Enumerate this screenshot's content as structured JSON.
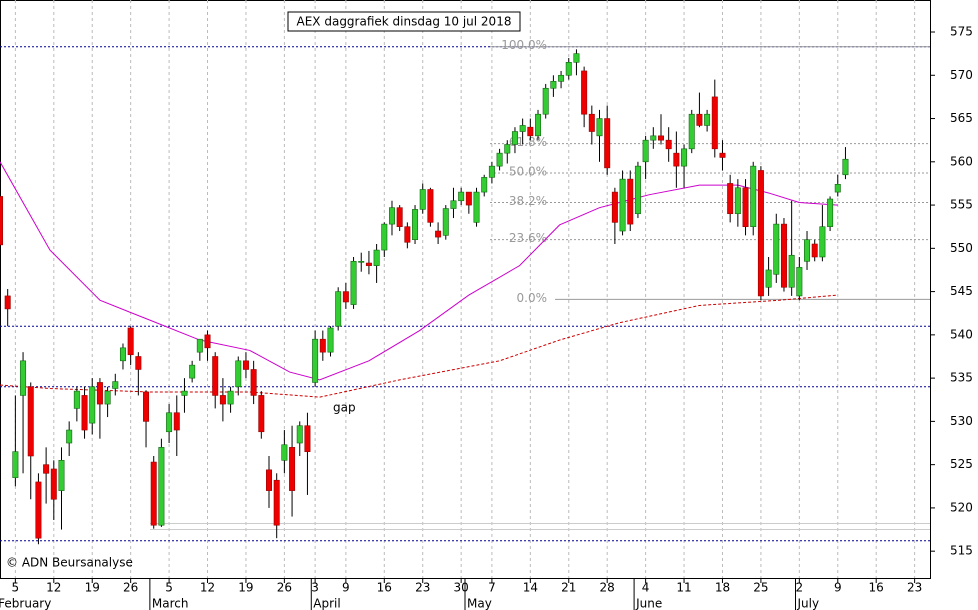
{
  "chart_data": {
    "type": "candlestick",
    "title": "AEX daggrafiek dinsdag 10 jul 2018",
    "annotation": "gap",
    "credit": "© ADN Beursanalyse",
    "up_color": "#33cc33",
    "down_color": "#ee0000",
    "xlim": [
      -2,
      119
    ],
    "ylim": [
      511.9,
      578.7
    ],
    "yticks": [
      515,
      520,
      525,
      530,
      535,
      540,
      545,
      550,
      555,
      560,
      565,
      570,
      575
    ],
    "xticks": [
      {
        "value": 0,
        "label": "5"
      },
      {
        "value": 5,
        "label": "12"
      },
      {
        "value": 10,
        "label": "19"
      },
      {
        "value": 15,
        "label": "26"
      },
      {
        "value": 20,
        "label": "5"
      },
      {
        "value": 25,
        "label": "12"
      },
      {
        "value": 30,
        "label": "19"
      },
      {
        "value": 35,
        "label": "26"
      },
      {
        "value": 39,
        "label": "3"
      },
      {
        "value": 43,
        "label": "9"
      },
      {
        "value": 48,
        "label": "16"
      },
      {
        "value": 53,
        "label": "23"
      },
      {
        "value": 58,
        "label": "30"
      },
      {
        "value": 62,
        "label": "7"
      },
      {
        "value": 67,
        "label": "14"
      },
      {
        "value": 72,
        "label": "21"
      },
      {
        "value": 77,
        "label": "28"
      },
      {
        "value": 82,
        "label": "4"
      },
      {
        "value": 87,
        "label": "11"
      },
      {
        "value": 92,
        "label": "18"
      },
      {
        "value": 97,
        "label": "25"
      },
      {
        "value": 102,
        "label": "2"
      },
      {
        "value": 107,
        "label": "9"
      },
      {
        "value": 112,
        "label": "16"
      },
      {
        "value": 117,
        "label": "23"
      }
    ],
    "months": [
      {
        "value": -2,
        "label": "February"
      },
      {
        "value": 18,
        "label": "March"
      },
      {
        "value": 39,
        "label": "April"
      },
      {
        "value": 59,
        "label": "May"
      },
      {
        "value": 81,
        "label": "June"
      },
      {
        "value": 102,
        "label": "July"
      }
    ],
    "grid": true,
    "x": [
      -2,
      -1,
      0,
      1,
      2,
      3,
      4,
      5,
      6,
      7,
      8,
      9,
      10,
      11,
      12,
      13,
      14,
      15,
      16,
      17,
      18,
      19,
      20,
      21,
      22,
      23,
      24,
      25,
      26,
      27,
      28,
      29,
      30,
      31,
      32,
      33,
      34,
      35,
      36,
      37,
      38,
      39,
      40,
      41,
      42,
      43,
      44,
      45,
      46,
      47,
      48,
      49,
      50,
      51,
      52,
      53,
      54,
      55,
      56,
      57,
      58,
      59,
      60,
      61,
      62,
      63,
      64,
      65,
      66,
      67,
      68,
      69,
      70,
      71,
      72,
      73,
      74,
      75,
      76,
      77,
      78,
      79,
      80,
      81,
      82,
      83,
      84,
      85,
      86,
      87,
      88,
      89,
      90,
      91,
      92,
      93,
      94,
      95,
      96,
      97,
      98,
      99,
      100,
      101,
      102,
      103,
      104,
      105,
      106,
      107,
      108
    ],
    "open": [
      556,
      544.5,
      523.5,
      533,
      534,
      523,
      525,
      524.5,
      522,
      527.5,
      531.5,
      533,
      529.8,
      534.5,
      532,
      533.8,
      537,
      540.8,
      537.5,
      533.4,
      525.3,
      518,
      528.8,
      531,
      533,
      535,
      538,
      540,
      537.5,
      533,
      532,
      534,
      537,
      536,
      533,
      524.4,
      523.2,
      525.5,
      527,
      527.5,
      529.5,
      534.5,
      539.5,
      538,
      541,
      545,
      543.5,
      548.5,
      548.3,
      548,
      549.8,
      552.8,
      554.7,
      552.5,
      551,
      554.5,
      556.8,
      552,
      551.5,
      554.6,
      555.5,
      556.5,
      553,
      556.5,
      558.2,
      559.5,
      561,
      562,
      563.5,
      564,
      563,
      565.5,
      568.5,
      569.3,
      570,
      571.5,
      570.5,
      565.5,
      563,
      565,
      556.5,
      552,
      558,
      554,
      560,
      562.5,
      563,
      562.5,
      561,
      559.5,
      561.5,
      565.5,
      564.2,
      567.5,
      561,
      557.5,
      554,
      557,
      552.5,
      559,
      545.5,
      547,
      552.8,
      545.5,
      544.5,
      548.5,
      550.5,
      549,
      552.5,
      556.5,
      558.5
    ],
    "high": [
      556.2,
      545.3,
      533,
      538,
      534.5,
      524,
      527,
      525.5,
      527,
      530,
      534,
      534,
      535,
      535,
      534,
      535.5,
      539,
      541,
      538,
      533.6,
      526,
      528,
      532,
      533,
      535,
      537,
      539.5,
      540.5,
      538,
      535,
      534,
      537.5,
      538,
      537,
      533.5,
      526,
      524,
      529,
      529.5,
      530,
      531,
      540.5,
      540.5,
      541,
      545.5,
      546,
      549,
      549.5,
      549.7,
      550.5,
      553,
      555.5,
      555,
      553,
      555,
      557.5,
      557,
      553,
      555,
      557,
      557,
      556.5,
      557,
      558.5,
      560,
      561.5,
      562.5,
      564,
      565,
      565,
      566,
      569,
      570,
      570.5,
      572,
      573,
      571,
      566.5,
      566,
      566.5,
      557,
      559,
      559,
      560,
      563,
      564,
      565.5,
      564,
      563.5,
      562,
      566,
      568,
      566,
      569.5,
      562.5,
      558.5,
      558,
      558,
      560,
      559.5,
      549,
      554,
      553.5,
      555.5,
      549,
      552,
      551,
      555,
      556,
      558.5,
      561.7
    ],
    "low": [
      550,
      541,
      522.5,
      524,
      521,
      515.8,
      520.5,
      518.6,
      517.5,
      526,
      530,
      528,
      528.5,
      528,
      530.5,
      533,
      536,
      536.5,
      533,
      527,
      517.6,
      517.8,
      527.5,
      526,
      531,
      534.5,
      537,
      537,
      531.5,
      530,
      531,
      533,
      535,
      532,
      528,
      520,
      516.5,
      524,
      519,
      526,
      521.5,
      534,
      537,
      537.5,
      540.5,
      543,
      543,
      547.3,
      547,
      546,
      549,
      551.5,
      552,
      550,
      550.5,
      554,
      552.5,
      550.5,
      551,
      553.5,
      555,
      554,
      552.5,
      556,
      557.5,
      559,
      559.8,
      561,
      562,
      562.5,
      562.5,
      565,
      567.5,
      568.5,
      569.5,
      570,
      564,
      562,
      560,
      558.5,
      550.5,
      551.5,
      552,
      553.5,
      558,
      561.5,
      562,
      560,
      557,
      557,
      561,
      564,
      563.5,
      560.5,
      559,
      553,
      552.5,
      551.5,
      551.5,
      544,
      544.5,
      546,
      545,
      544.5,
      544,
      547.5,
      548.5,
      548.5,
      552,
      556,
      558
    ],
    "close": [
      550.4,
      543,
      526.5,
      537,
      526,
      516.5,
      524,
      521,
      525.5,
      529,
      533.5,
      529,
      534,
      532,
      533.5,
      534.6,
      538.5,
      537.7,
      536,
      530,
      518,
      527,
      531,
      529,
      533.5,
      536.5,
      539.5,
      538.5,
      533,
      532,
      533.5,
      537,
      536,
      533,
      528.8,
      522,
      518,
      527.3,
      522,
      529.5,
      526.5,
      539.5,
      538,
      540.8,
      545,
      543.8,
      548.5,
      548.5,
      548,
      549.8,
      552.8,
      554.7,
      552.5,
      550.7,
      554.5,
      556.8,
      553,
      551.3,
      554.6,
      555.5,
      556.5,
      555,
      556.5,
      558.2,
      559.5,
      561,
      562,
      563.5,
      564.2,
      563,
      565.5,
      568.5,
      569.3,
      570,
      571.5,
      572.5,
      565.5,
      563.5,
      565,
      559.3,
      553,
      558,
      552.8,
      559.5,
      562.5,
      563,
      562.5,
      561.5,
      559.5,
      561.5,
      565.5,
      564.2,
      565.5,
      561.5,
      560.5,
      554,
      557,
      552.5,
      559.5,
      544.5,
      547.5,
      552.8,
      545.5,
      549.2,
      547.8,
      551,
      549,
      552.5,
      555.7,
      557.4,
      560.3
    ],
    "averages": [
      {
        "color": "#cc00cc",
        "dashed": false,
        "x": [
          -2,
          4.5,
          11,
          17.5,
          24,
          30.5,
          35.7,
          39.6,
          46,
          52.6,
          59,
          65.6,
          70.8,
          76,
          82.5,
          89,
          94,
          98,
          102,
          107
        ],
        "values": [
          560,
          549.8,
          544,
          541.7,
          539.4,
          538.2,
          535.7,
          534.8,
          537,
          540.5,
          544.6,
          548,
          552.7,
          554.7,
          556.2,
          557.3,
          557.3,
          556.4,
          555.3,
          555
        ]
      },
      {
        "color": "#cc0000",
        "dashed": true,
        "x": [
          -2,
          4.5,
          17.5,
          30.5,
          39.6,
          50,
          63,
          70.8,
          78.6,
          89,
          99.4,
          107
        ],
        "values": [
          534.2,
          533.8,
          533.4,
          533.4,
          532.8,
          534.8,
          537,
          539.4,
          541.4,
          543.4,
          544,
          544.6
        ]
      }
    ],
    "levels": {
      "color": "#000099",
      "values": [
        573.3,
        541,
        534,
        516.2
      ]
    },
    "support_lines": {
      "color": "#cccccc",
      "values": [
        517.5,
        518.2
      ]
    },
    "fibonacci": {
      "color": "#999999",
      "levels": [
        {
          "value": 573.3,
          "label": "100.0%"
        },
        {
          "value": 562.1,
          "label": "61.8%"
        },
        {
          "value": 558.7,
          "label": "50.0%"
        },
        {
          "value": 555.3,
          "label": "38.2%"
        },
        {
          "value": 551.0,
          "label": "23.6%"
        },
        {
          "value": 544.1,
          "label": "0.0%"
        }
      ]
    }
  }
}
